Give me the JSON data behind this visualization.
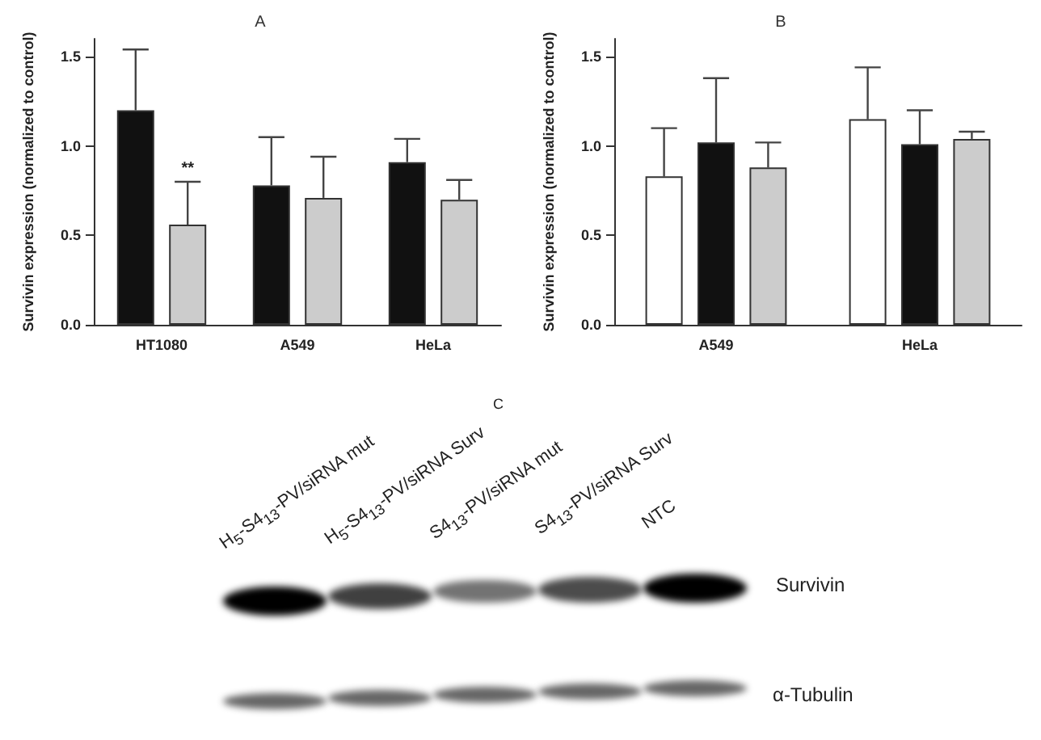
{
  "chart_data": [
    {
      "type": "bar",
      "title": "A",
      "ylabel": "Survivin expression (normalized to control)",
      "categories": [
        "HT1080",
        "A549",
        "HeLa"
      ],
      "series": [
        {
          "color": "#111111",
          "values": [
            1.2,
            0.78,
            0.91
          ],
          "errors": [
            [
              1.2,
              1.54
            ],
            [
              0.78,
              1.05
            ],
            [
              0.91,
              1.04
            ]
          ]
        },
        {
          "color": "#cccccc",
          "values": [
            0.56,
            0.71,
            0.7
          ],
          "errors": [
            [
              0.56,
              0.8
            ],
            [
              0.71,
              0.94
            ],
            [
              0.7,
              0.81
            ]
          ]
        }
      ],
      "ylim": [
        0,
        1.6
      ],
      "yticks": [
        {
          "value": 0,
          "label": "0.0"
        },
        {
          "value": 0.5,
          "label": "0.5"
        },
        {
          "value": 1,
          "label": "1.0"
        },
        {
          "value": 1.5,
          "label": "1.5"
        }
      ],
      "annotations": [
        "**"
      ],
      "grid": false
    },
    {
      "type": "bar",
      "title": "B",
      "ylabel": "Survivin expression (normalized to control)",
      "categories": [
        "A549",
        "HeLa"
      ],
      "series": [
        {
          "color": "#ffffff",
          "values": [
            0.83,
            1.15
          ],
          "errors": [
            [
              0.83,
              1.1
            ],
            [
              1.15,
              1.44
            ]
          ]
        },
        {
          "color": "#111111",
          "values": [
            1.02,
            1.01
          ],
          "errors": [
            [
              1.02,
              1.38
            ],
            [
              1.01,
              1.2
            ]
          ]
        },
        {
          "color": "#cccccc",
          "values": [
            0.88,
            1.04
          ],
          "errors": [
            [
              0.88,
              1.02
            ],
            [
              1.04,
              1.08
            ]
          ]
        }
      ],
      "ylim": [
        0,
        1.6
      ],
      "yticks": [
        {
          "value": 0,
          "label": "0.0"
        },
        {
          "value": 0.5,
          "label": "0.5"
        },
        {
          "value": 1,
          "label": "1.0"
        },
        {
          "value": 1.5,
          "label": "1.5"
        }
      ],
      "grid": false
    },
    {
      "type": "other",
      "title": "C",
      "annotations": [
        "H$_{5}$-S4$_{13}$-PV/siRNA mut",
        "H$_{5}$-S4$_{13}$-PV/siRNA Surv",
        "S4$_{13}$-PV/siRNA mut",
        "S4$_{13}$-PV/siRNA Surv",
        "NTC",
        "Survivin",
        "α-Tubulin"
      ]
    }
  ]
}
